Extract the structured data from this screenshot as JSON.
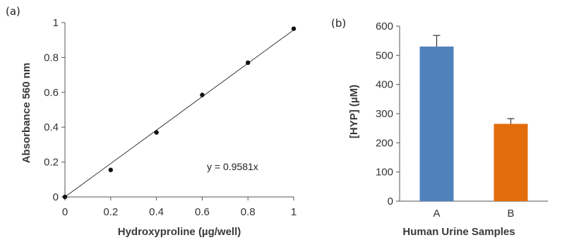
{
  "chart_data": [
    {
      "panel": "(a)",
      "type": "scatter",
      "xlabel": "Hydroxyproline  (µg/well)",
      "ylabel": "Absorbance 560 nm",
      "xlim": [
        0,
        1
      ],
      "ylim": [
        0,
        1
      ],
      "x_ticks": [
        "0",
        "0.2",
        "0.4",
        "0.6",
        "0.8",
        "1"
      ],
      "y_ticks": [
        "0",
        "0.2",
        "0.4",
        "0.6",
        "0.8",
        "1"
      ],
      "series": [
        {
          "x": [
            0,
            0.2,
            0.4,
            0.6,
            0.8,
            1.0
          ],
          "y": [
            0,
            0.155,
            0.37,
            0.585,
            0.77,
            0.965
          ]
        }
      ],
      "trendline": {
        "equation": "y = 0.9581x",
        "slope": 0.9581,
        "intercept": 0
      },
      "grid": false
    },
    {
      "panel": "(b)",
      "type": "bar",
      "categories": [
        "A",
        "B"
      ],
      "values": [
        530,
        265
      ],
      "errors": [
        38,
        18
      ],
      "colors": [
        "#4f81bd",
        "#e36c0a"
      ],
      "xlabel": "Human Urine Samples",
      "ylabel": "[HYP] (µM)",
      "ylim": [
        0,
        600
      ],
      "y_ticks": [
        "0",
        "100",
        "200",
        "300",
        "400",
        "500",
        "600"
      ],
      "grid": false
    }
  ]
}
